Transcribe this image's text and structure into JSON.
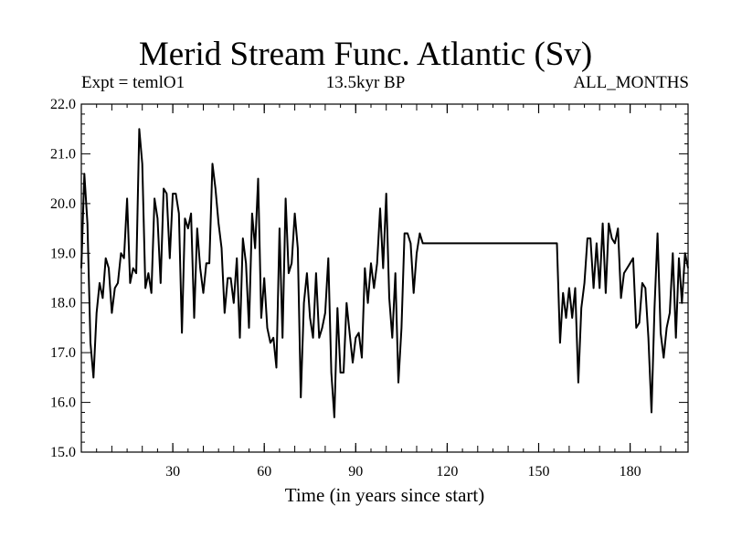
{
  "chart_data": {
    "type": "line",
    "title": "Merid Stream Func. Atlantic (Sv)",
    "subtitle_left": "Expt = temlO1",
    "subtitle_center": "13.5kyr BP",
    "subtitle_right": "ALL_MONTHS",
    "xlabel": "Time (in years since start)",
    "ylabel": "",
    "xlim": [
      0,
      199
    ],
    "ylim": [
      15.0,
      22.0
    ],
    "xticks": [
      30,
      60,
      90,
      120,
      150,
      180
    ],
    "yticks": [
      "15.0",
      "16.0",
      "17.0",
      "18.0",
      "19.0",
      "20.0",
      "21.0",
      "22.0"
    ],
    "series": [
      {
        "name": "Merid Stream Func. Atlantic",
        "color": "#000000",
        "x": [
          0,
          1,
          2,
          3,
          4,
          5,
          6,
          7,
          8,
          9,
          10,
          11,
          12,
          13,
          14,
          15,
          16,
          17,
          18,
          19,
          20,
          21,
          22,
          23,
          24,
          25,
          26,
          27,
          28,
          29,
          30,
          31,
          32,
          33,
          34,
          35,
          36,
          37,
          38,
          39,
          40,
          41,
          42,
          43,
          44,
          45,
          46,
          47,
          48,
          49,
          50,
          51,
          52,
          53,
          54,
          55,
          56,
          57,
          58,
          59,
          60,
          61,
          62,
          63,
          64,
          65,
          66,
          67,
          68,
          69,
          70,
          71,
          72,
          73,
          74,
          75,
          76,
          77,
          78,
          79,
          80,
          81,
          82,
          83,
          84,
          85,
          86,
          87,
          88,
          89,
          90,
          91,
          92,
          93,
          94,
          95,
          96,
          97,
          98,
          99,
          100,
          101,
          102,
          103,
          104,
          105,
          106,
          107,
          108,
          109,
          110,
          111,
          112,
          113,
          114,
          156,
          157,
          158,
          159,
          160,
          161,
          162,
          163,
          164,
          165,
          166,
          167,
          168,
          169,
          170,
          171,
          172,
          173,
          174,
          175,
          176,
          177,
          178,
          179,
          180,
          181,
          182,
          183,
          184,
          185,
          186,
          187,
          188,
          189,
          190,
          191,
          192,
          193,
          194,
          195,
          196,
          197,
          198,
          199
        ],
        "values": [
          18.7,
          20.6,
          19.6,
          17.2,
          16.5,
          17.8,
          18.4,
          18.1,
          18.9,
          18.7,
          17.8,
          18.3,
          18.4,
          19.0,
          18.9,
          20.1,
          18.4,
          18.7,
          18.6,
          21.5,
          20.8,
          18.3,
          18.6,
          18.2,
          20.1,
          19.7,
          18.4,
          20.3,
          20.2,
          18.9,
          20.2,
          20.2,
          19.8,
          17.4,
          19.7,
          19.5,
          19.8,
          17.7,
          19.5,
          18.7,
          18.2,
          18.8,
          18.8,
          20.8,
          20.3,
          19.6,
          19.1,
          17.8,
          18.5,
          18.5,
          18.0,
          18.9,
          17.3,
          19.3,
          18.8,
          17.5,
          19.8,
          19.1,
          20.5,
          17.7,
          18.5,
          17.5,
          17.2,
          17.3,
          16.7,
          19.5,
          17.3,
          20.1,
          18.6,
          18.8,
          19.8,
          19.1,
          16.1,
          18.0,
          18.6,
          17.7,
          17.3,
          18.6,
          17.3,
          17.5,
          17.8,
          18.9,
          16.6,
          15.7,
          17.9,
          16.6,
          16.6,
          18.0,
          17.4,
          16.8,
          17.3,
          17.4,
          16.9,
          18.7,
          18.0,
          18.8,
          18.3,
          18.8,
          19.9,
          18.7,
          20.2,
          18.1,
          17.3,
          18.6,
          16.4,
          17.5,
          19.4,
          19.4,
          19.2,
          18.2,
          19.0,
          19.4,
          19.2,
          19.2,
          19.2,
          19.2,
          17.2,
          18.2,
          17.7,
          18.3,
          17.7,
          18.3,
          16.4,
          17.9,
          18.4,
          19.3,
          19.3,
          18.3,
          19.2,
          18.3,
          19.6,
          18.2,
          19.6,
          19.3,
          19.2,
          19.5,
          18.1,
          18.6,
          18.7,
          18.8,
          18.9,
          17.5,
          17.6,
          18.4,
          18.3,
          17.3,
          15.8,
          17.9,
          19.4,
          17.4,
          16.9,
          17.5,
          17.8,
          19.0,
          17.3,
          18.9,
          18.0,
          19.0,
          18.7
        ]
      }
    ],
    "grid": false,
    "legend": "none"
  }
}
